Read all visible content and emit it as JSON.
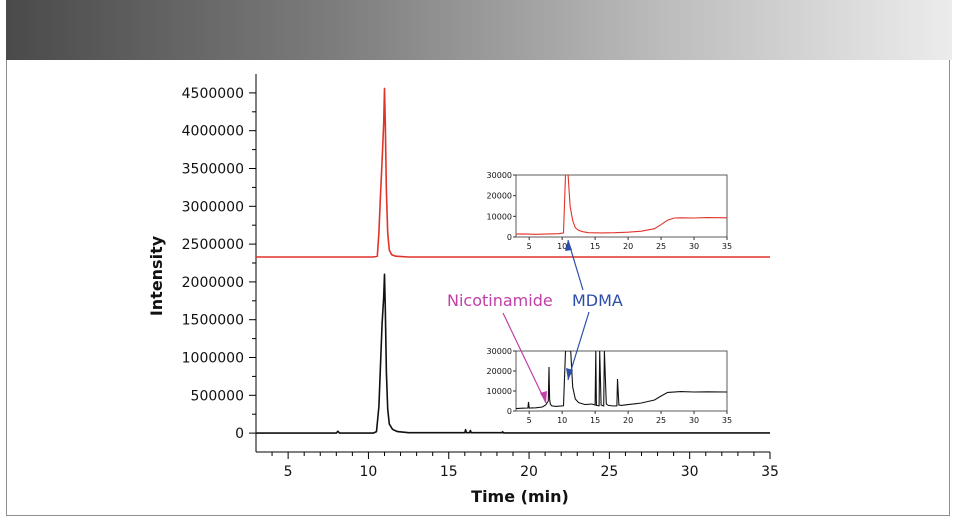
{
  "chart_data": {
    "type": "line",
    "xlabel": "Time (min)",
    "ylabel": "Intensity",
    "xlim": [
      3,
      35
    ],
    "ylim": [
      -250000,
      4750000
    ],
    "x_ticks": [
      5,
      10,
      15,
      20,
      25,
      30,
      35
    ],
    "y_ticks": [
      0,
      500000,
      1000000,
      1500000,
      2000000,
      2500000,
      3000000,
      3500000,
      4000000,
      4500000
    ],
    "grid": false,
    "series": [
      {
        "name": "red trace",
        "color": "#e0342a",
        "x": [
          3.0,
          10.3,
          10.55,
          10.65,
          10.75,
          10.85,
          10.95,
          11.0,
          11.05,
          11.12,
          11.2,
          11.3,
          11.45,
          11.7,
          12.5,
          35.0
        ],
        "y": [
          2330000,
          2330000,
          2340000,
          2650000,
          3150000,
          3600000,
          4100000,
          4560000,
          4100000,
          3200000,
          2650000,
          2420000,
          2360000,
          2340000,
          2330000,
          2330000
        ]
      },
      {
        "name": "black trace",
        "color": "#111111",
        "x": [
          3.0,
          8.0,
          8.1,
          8.2,
          10.3,
          10.5,
          10.65,
          10.75,
          10.85,
          10.95,
          11.0,
          11.05,
          11.12,
          11.2,
          11.3,
          11.5,
          11.8,
          12.5,
          16.0,
          16.05,
          16.1,
          16.3,
          16.35,
          16.4,
          18.3,
          18.35,
          18.4,
          35.0
        ],
        "y": [
          0,
          0,
          25000,
          0,
          0,
          20000,
          350000,
          900000,
          1450000,
          1800000,
          2100000,
          1650000,
          800000,
          320000,
          120000,
          50000,
          20000,
          5000,
          5000,
          45000,
          5000,
          5000,
          35000,
          5000,
          5000,
          18000,
          3000,
          3000
        ]
      }
    ],
    "annotations": [
      {
        "text": "Nicotinamide",
        "color": "#c040a8"
      },
      {
        "text": "MDMA",
        "color": "#2c4ea8"
      }
    ],
    "insets": [
      {
        "name": "red trace zoom",
        "color": "#e0342a",
        "xlim": [
          3,
          35
        ],
        "ylim": [
          0,
          30000
        ],
        "x_ticks": [
          5,
          10,
          15,
          20,
          25,
          30,
          35
        ],
        "y_ticks": [
          0,
          10000,
          20000,
          30000
        ],
        "x": [
          3,
          4,
          6,
          8,
          9.5,
          10.2,
          10.5,
          10.9,
          11.2,
          11.6,
          12.0,
          12.5,
          13.2,
          14,
          16,
          18,
          20,
          22,
          24,
          25,
          26,
          27,
          28,
          30,
          32,
          35
        ],
        "y": [
          1400,
          1500,
          1300,
          1500,
          1600,
          2000,
          30000,
          30000,
          15000,
          8000,
          4500,
          3200,
          2500,
          2100,
          2000,
          2100,
          2300,
          2800,
          4000,
          6000,
          8200,
          9200,
          9300,
          9200,
          9400,
          9300
        ]
      },
      {
        "name": "black trace zoom",
        "color": "#111111",
        "xlim": [
          3,
          35
        ],
        "ylim": [
          0,
          30000
        ],
        "x_ticks": [
          5,
          10,
          15,
          20,
          25,
          30,
          35
        ],
        "y_ticks": [
          0,
          10000,
          20000,
          30000
        ],
        "x": [
          3,
          4,
          4.8,
          4.9,
          5.0,
          6,
          7,
          7.5,
          7.9,
          8.0,
          8.1,
          8.2,
          8.4,
          9.0,
          10.2,
          10.5,
          11.3,
          11.6,
          12.0,
          12.5,
          13.5,
          14.5,
          15.0,
          15.1,
          15.2,
          15.6,
          15.7,
          15.9,
          16.3,
          16.4,
          16.7,
          17.0,
          17.8,
          18.3,
          18.4,
          18.6,
          19,
          20,
          22,
          24,
          25,
          26,
          28,
          30,
          32,
          35
        ],
        "y": [
          1200,
          1400,
          1500,
          4500,
          1500,
          1600,
          2000,
          3000,
          5000,
          22000,
          6000,
          3500,
          2600,
          2300,
          2600,
          30000,
          30000,
          12000,
          6000,
          4200,
          3200,
          3500,
          3000,
          30000,
          2800,
          2600,
          30000,
          3000,
          2500,
          30000,
          3500,
          2800,
          2500,
          2600,
          16000,
          3000,
          2800,
          3200,
          4000,
          5500,
          7500,
          9300,
          9700,
          9500,
          9600,
          9500
        ]
      }
    ]
  }
}
